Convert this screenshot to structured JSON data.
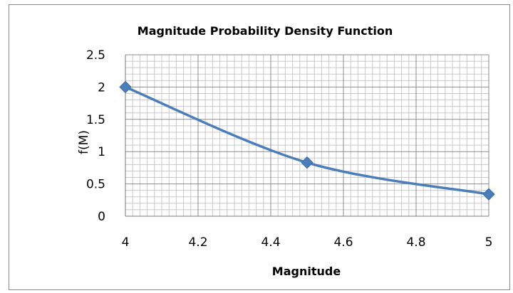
{
  "chart_data": {
    "type": "line",
    "title": "Magnitude Probability Density Function",
    "xlabel": "Magnitude",
    "ylabel": "f(M)",
    "xlim": [
      4,
      5
    ],
    "ylim": [
      0,
      2.5
    ],
    "x_ticks": [
      "4",
      "4.2",
      "4.4",
      "4.6",
      "4.8",
      "5"
    ],
    "y_ticks": [
      "0",
      "0.5",
      "1",
      "1.5",
      "2",
      "2.5"
    ],
    "grid": true,
    "series": [
      {
        "x": [
          4.0,
          4.5,
          5.0
        ],
        "values": [
          2.0,
          0.83,
          0.34
        ],
        "color": "#4a7ebb",
        "marker": "diamond"
      }
    ]
  }
}
